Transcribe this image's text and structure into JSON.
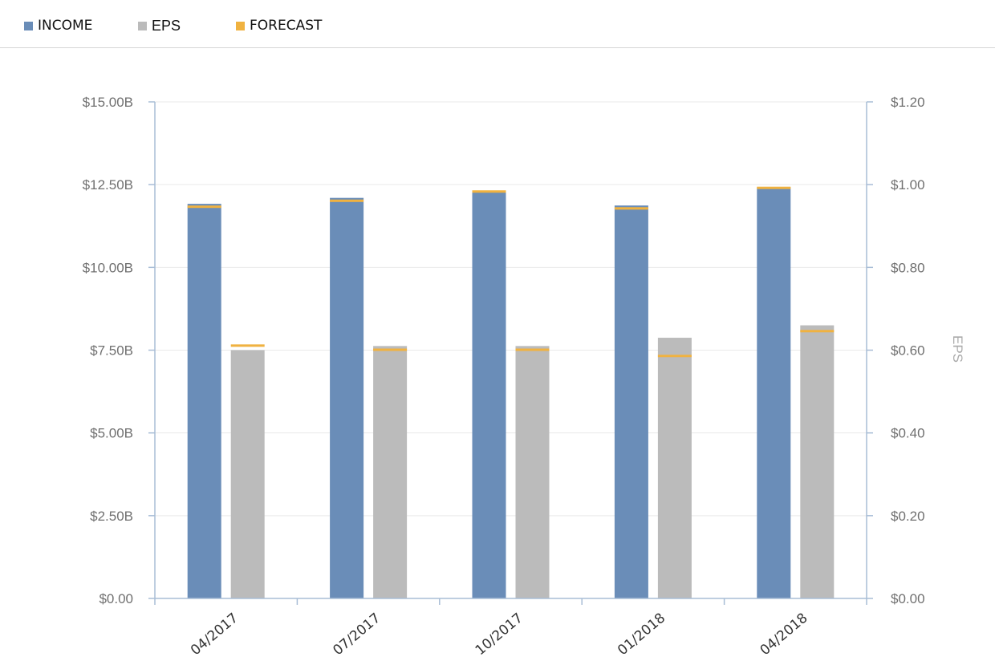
{
  "legend": {
    "income": {
      "label": "INCOME",
      "color": "#6a8db8"
    },
    "eps": {
      "label": "EPS",
      "color": "#bbbbbb"
    },
    "forecast": {
      "label": "FORECAST",
      "color": "#f0b240"
    }
  },
  "chart_data": {
    "type": "bar",
    "categories": [
      "04/2017",
      "07/2017",
      "10/2017",
      "01/2018",
      "04/2018"
    ],
    "series": [
      {
        "name": "INCOME",
        "axis": "left",
        "color": "#6a8db8",
        "values": [
          11.92,
          12.1,
          12.3,
          11.87,
          12.42
        ],
        "forecast": [
          11.82,
          12.0,
          12.28,
          11.77,
          12.39
        ]
      },
      {
        "name": "EPS",
        "axis": "right",
        "color": "#bbbbbb",
        "values": [
          0.6,
          0.61,
          0.61,
          0.63,
          0.66
        ],
        "forecast": [
          0.61,
          0.6,
          0.6,
          0.585,
          0.645
        ]
      }
    ],
    "forecast_color": "#f0b240",
    "left_axis": {
      "min": 0,
      "max": 15,
      "ticks": [
        "$0.00",
        "$2.50B",
        "$5.00B",
        "$7.50B",
        "$10.00B",
        "$12.50B",
        "$15.00B"
      ]
    },
    "right_axis": {
      "min": 0,
      "max": 1.2,
      "label": "EPS",
      "ticks": [
        "$0.00",
        "$0.20",
        "$0.40",
        "$0.60",
        "$0.80",
        "$1.00",
        "$1.20"
      ]
    },
    "grid": true,
    "legend_position": "top-left"
  }
}
